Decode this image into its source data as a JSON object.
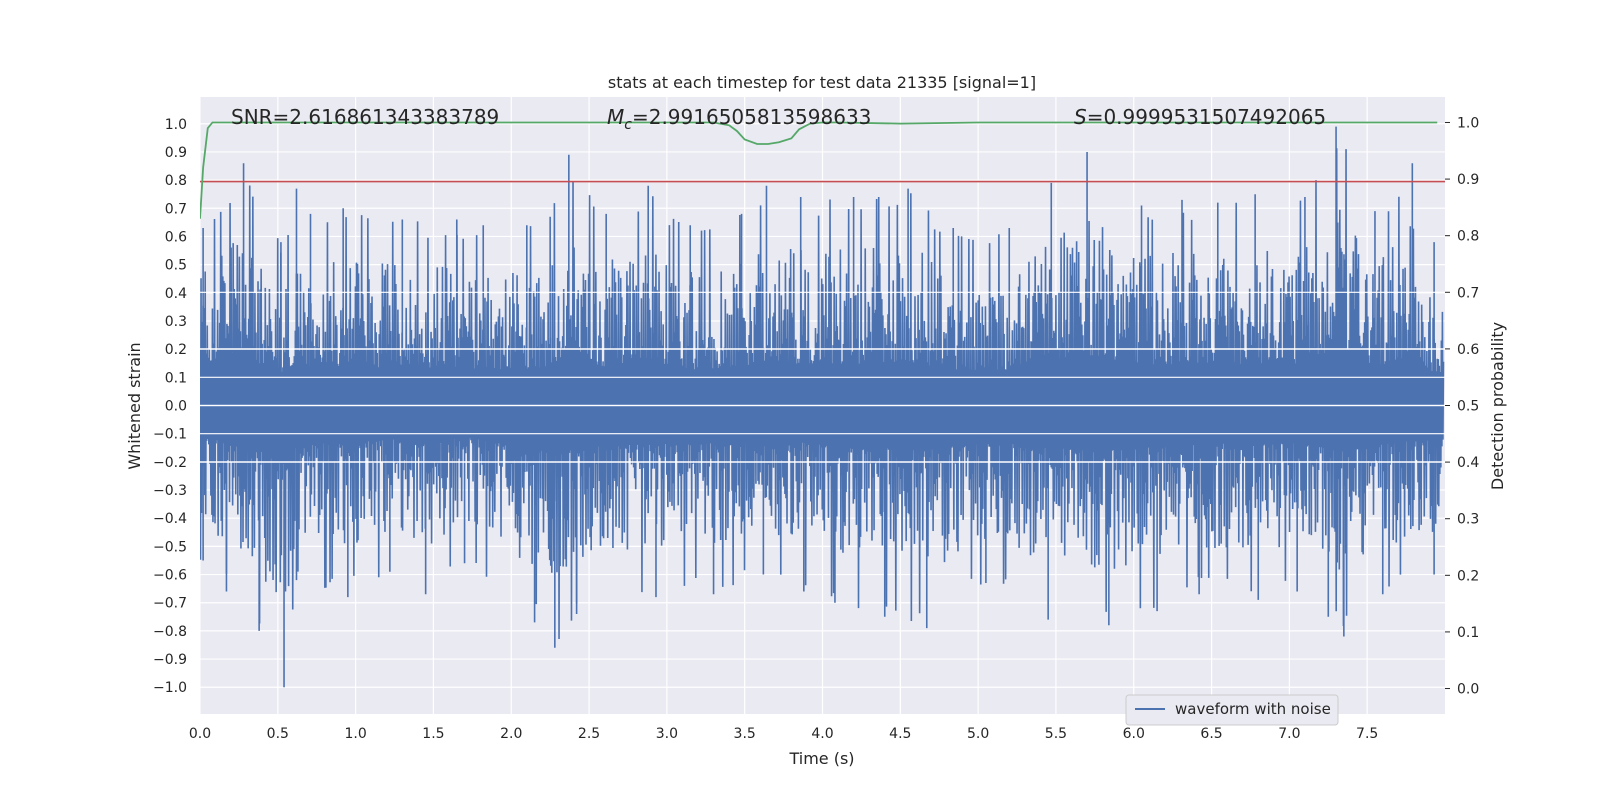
{
  "chart_data": {
    "type": "line",
    "title": "stats at each timestep for test data 21335 [signal=1]",
    "xlabel": "Time (s)",
    "ylabel": "Whitened strain",
    "y2label": "Detection probability",
    "xlim": [
      0.0,
      8.0
    ],
    "ylim": [
      -1.095,
      1.095
    ],
    "y2lim": [
      -0.045,
      1.045
    ],
    "xticks": [
      "0.0",
      "0.5",
      "1.0",
      "1.5",
      "2.0",
      "2.5",
      "3.0",
      "3.5",
      "4.0",
      "4.5",
      "5.0",
      "5.5",
      "6.0",
      "6.5",
      "7.0",
      "7.5"
    ],
    "yticks": [
      "1.0",
      "0.9",
      "0.8",
      "0.7",
      "0.6",
      "0.5",
      "0.4",
      "0.3",
      "0.2",
      "0.1",
      "0.0",
      "−0.1",
      "−0.2",
      "−0.3",
      "−0.4",
      "−0.5",
      "−0.6",
      "−0.7",
      "−0.8",
      "−0.9",
      "−1.0"
    ],
    "y2ticks": [
      "1.0",
      "0.9",
      "0.8",
      "0.7",
      "0.6",
      "0.5",
      "0.4",
      "0.3",
      "0.2",
      "0.1",
      "0.0"
    ],
    "annotations": {
      "snr": "SNR=2.616861343383789",
      "mc_symbol": "M",
      "mc_sub": "c",
      "mc_value": "=2.9916505813598633",
      "s_symbol": "S",
      "s_value": "=0.9999531507492065"
    },
    "legend": {
      "label": "waveform with noise",
      "position": "lower-right"
    },
    "series": [
      {
        "name": "waveform with noise",
        "axis": "left",
        "color": "#4c72b0",
        "style": "dense noisy strain, core amplitude about ±0.2 to ±0.4",
        "upper_envelope_x": [
          0.02,
          0.28,
          0.52,
          0.62,
          0.71,
          0.92,
          1.3,
          1.65,
          1.82,
          2.1,
          2.25,
          2.37,
          2.61,
          2.88,
          3.15,
          3.48,
          3.64,
          3.86,
          4.2,
          4.55,
          4.84,
          5.2,
          5.47,
          5.7,
          6.05,
          6.31,
          6.54,
          6.78,
          7.1,
          7.3,
          7.55,
          7.79,
          7.93
        ],
        "upper_envelope_y": [
          0.63,
          0.86,
          0.58,
          0.77,
          0.68,
          0.7,
          0.66,
          0.66,
          0.64,
          0.64,
          0.67,
          0.89,
          0.68,
          0.78,
          0.64,
          0.68,
          0.78,
          0.74,
          0.74,
          0.77,
          0.63,
          0.63,
          0.79,
          0.9,
          0.71,
          0.73,
          0.72,
          0.75,
          0.74,
          0.99,
          0.69,
          0.86,
          0.58
        ],
        "lower_envelope_x": [
          0.02,
          0.17,
          0.38,
          0.54,
          0.62,
          0.95,
          1.22,
          1.45,
          1.7,
          2.15,
          2.28,
          2.42,
          2.93,
          3.3,
          3.62,
          3.88,
          4.08,
          4.4,
          4.67,
          5.05,
          5.45,
          5.84,
          6.15,
          6.42,
          6.8,
          7.05,
          7.25,
          7.35,
          7.6,
          7.93
        ],
        "lower_envelope_y": [
          -0.55,
          -0.66,
          -0.8,
          -1.0,
          -0.62,
          -0.68,
          -0.59,
          -0.67,
          -0.56,
          -0.77,
          -0.86,
          -0.74,
          -0.68,
          -0.67,
          -0.6,
          -0.66,
          -0.7,
          -0.75,
          -0.79,
          -0.63,
          -0.76,
          -0.78,
          -0.73,
          -0.67,
          -0.69,
          -0.66,
          -0.75,
          -0.82,
          -0.67,
          -0.6
        ]
      },
      {
        "name": "detection probability",
        "axis": "right",
        "color": "#55a868",
        "x": [
          0.0,
          0.02,
          0.05,
          0.08,
          0.12,
          0.2,
          0.5,
          1.0,
          2.0,
          3.0,
          3.3,
          3.4,
          3.45,
          3.5,
          3.58,
          3.65,
          3.72,
          3.8,
          3.85,
          3.92,
          4.0,
          4.1,
          4.5,
          5.0,
          6.0,
          7.0,
          7.95
        ],
        "y": [
          0.83,
          0.92,
          0.99,
          1.0,
          1.0,
          1.0,
          1.0,
          1.0,
          1.0,
          1.0,
          1.0,
          0.995,
          0.985,
          0.97,
          0.962,
          0.962,
          0.965,
          0.972,
          0.988,
          0.998,
          1.0,
          1.0,
          0.998,
          1.0,
          1.0,
          1.0,
          1.0
        ]
      },
      {
        "name": "threshold",
        "axis": "left",
        "color": "#c44e52",
        "x": [
          0.0,
          8.0
        ],
        "y": [
          0.795,
          0.795
        ]
      }
    ],
    "grid": true
  }
}
